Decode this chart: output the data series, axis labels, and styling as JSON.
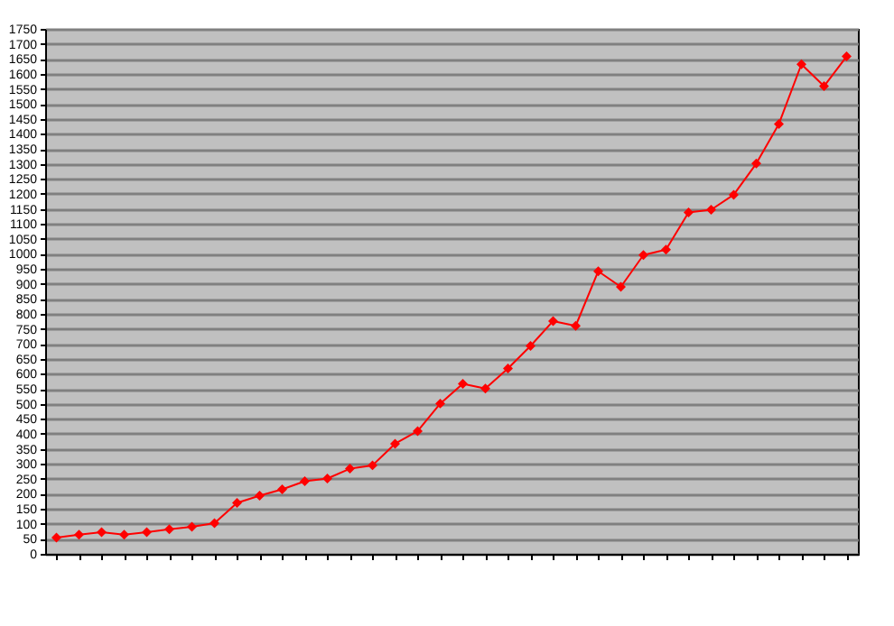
{
  "chart_data": {
    "type": "line",
    "categories": [
      null,
      null,
      null,
      null,
      null,
      null,
      null,
      null,
      null,
      null,
      null,
      null,
      null,
      null,
      null,
      null,
      null,
      null,
      null,
      null,
      null,
      null,
      null,
      null,
      null,
      null,
      null,
      null,
      null,
      null,
      null,
      null,
      null,
      null,
      null,
      null
    ],
    "series": [
      {
        "color": "#ff0000",
        "values": [
          54,
          64,
          72,
          64,
          72,
          82,
          90,
          102,
          170,
          194,
          215,
          242,
          251,
          284,
          295,
          367,
          409,
          501,
          567,
          551,
          618,
          693,
          776,
          760,
          942,
          890,
          996,
          1014,
          1138,
          1147,
          1197,
          1301,
          1433,
          1632,
          1559,
          1658
        ]
      }
    ],
    "ylim": [
      0,
      1750
    ],
    "yticks": [
      0,
      50,
      100,
      150,
      200,
      250,
      300,
      350,
      400,
      450,
      500,
      550,
      600,
      650,
      700,
      750,
      800,
      850,
      900,
      950,
      1000,
      1050,
      1100,
      1150,
      1200,
      1250,
      1300,
      1350,
      1400,
      1450,
      1500,
      1550,
      1600,
      1650,
      1700,
      1750
    ],
    "grid": "y",
    "marker": "diamond",
    "line_style": "solid",
    "legend": false
  }
}
